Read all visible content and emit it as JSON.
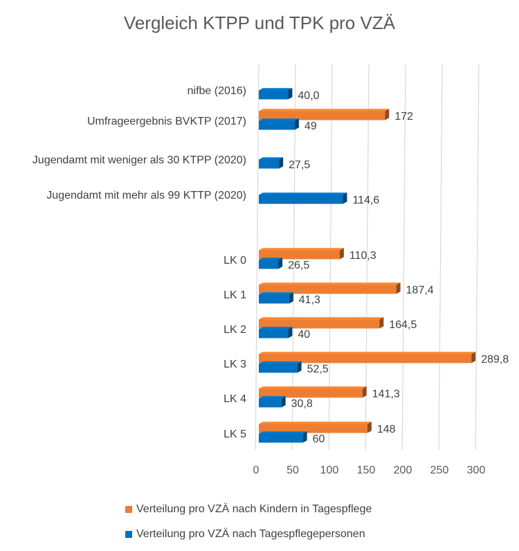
{
  "chart_data": {
    "type": "bar",
    "orientation": "horizontal",
    "title": "Vergleich KTPP und TPK pro VZÄ",
    "categories": [
      "nifbe (2016)",
      "Umfrageergebnis BVKTP (2017)",
      "Jugendamt mit weniger als 30 KTPP (2020)",
      "Jugendamt mit mehr als 99 KTTP (2020)",
      "",
      "LK 0",
      "LK 1",
      "LK 2",
      "LK 3",
      "LK 4",
      "LK 5"
    ],
    "series": [
      {
        "name": "Verteilung pro VZÄ nach  Kindern in Tagespflege",
        "color": "#ED7D31",
        "values": [
          null,
          172,
          null,
          null,
          null,
          110.3,
          187.4,
          164.5,
          289.8,
          141.3,
          148
        ],
        "labels": [
          "",
          "172",
          "",
          "",
          "",
          "110,3",
          "187,4",
          "164,5",
          "289,8",
          "141,3",
          "148"
        ]
      },
      {
        "name": "Verteilung pro VZÄ nach  Tagespflegepersonen",
        "color": "#0070C0",
        "values": [
          40.0,
          49,
          27.5,
          114.6,
          null,
          26.5,
          41.3,
          40,
          52.5,
          30.8,
          60
        ],
        "labels": [
          "40,0",
          "49",
          "27,5",
          "114,6",
          "",
          "26,5",
          "41,3",
          "40",
          "52,5",
          "30,8",
          "60"
        ]
      }
    ],
    "xlim": [
      0,
      300
    ],
    "xticks": [
      0,
      50,
      100,
      150,
      200,
      250,
      300
    ],
    "xtick_labels": [
      "0",
      "50",
      "100",
      "150",
      "200",
      "250",
      "300"
    ],
    "grid": true,
    "legend_position": "bottom"
  }
}
